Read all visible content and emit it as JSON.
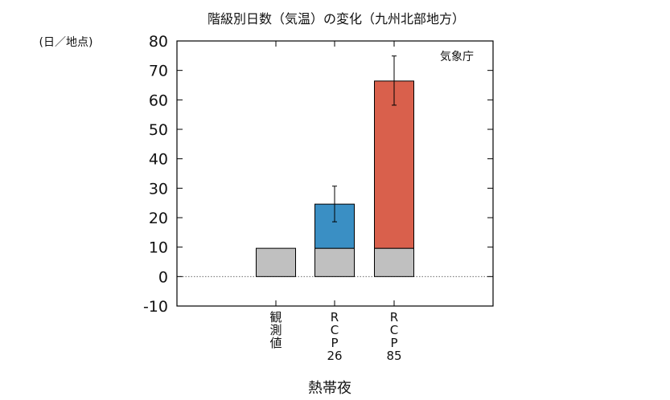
{
  "chart_data": {
    "type": "bar",
    "title": "階級別日数（気温）の変化（九州北部地方）",
    "unit_label": "(日／地点)",
    "source_label": "気象庁",
    "xlabel": "熱帯夜",
    "ylabel": "",
    "ylim": [
      -10,
      80
    ],
    "yticks": [
      -10,
      0,
      10,
      20,
      30,
      40,
      50,
      60,
      70,
      80
    ],
    "zero_line": "dotted",
    "grid": false,
    "categories": [
      {
        "label_lines": [
          "観",
          "測",
          "値"
        ]
      },
      {
        "label_lines": [
          "R",
          "C",
          "P",
          "26"
        ]
      },
      {
        "label_lines": [
          "R",
          "C",
          "P",
          "85"
        ]
      }
    ],
    "observed_value": 9.6,
    "series": [
      {
        "color": "#c0c0c0",
        "values": [
          9.6,
          9.6,
          9.6
        ]
      },
      {
        "color": "#3a8fc4",
        "values": [
          null,
          24.6,
          null
        ]
      },
      {
        "color": "#d9604c",
        "values": [
          null,
          null,
          66.4
        ]
      }
    ],
    "error_bars": [
      null,
      {
        "center": 24.6,
        "low": 18.6,
        "high": 30.7
      },
      {
        "center": 66.4,
        "low": 58.2,
        "high": 74.9
      }
    ]
  }
}
